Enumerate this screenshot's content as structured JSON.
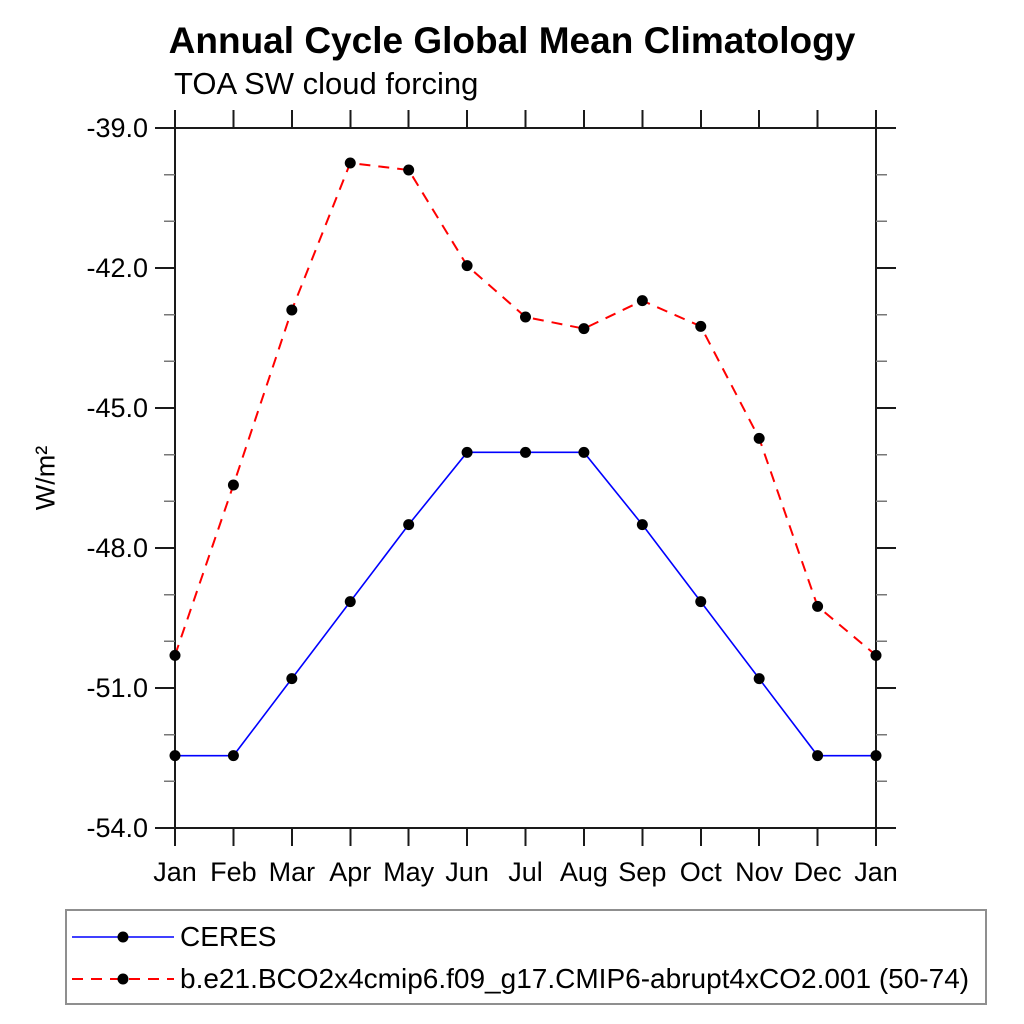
{
  "chart_data": {
    "type": "line",
    "title": "Annual Cycle Global Mean Climatology",
    "subtitle": "TOA SW cloud forcing",
    "ylabel": "W/m²",
    "xlabel": "",
    "ylim": [
      -54.0,
      -39.0
    ],
    "y_major_ticks": [
      -39.0,
      -42.0,
      -45.0,
      -48.0,
      -51.0,
      -54.0
    ],
    "y_tick_labels": [
      "-39.0",
      "-42.0",
      "-45.0",
      "-48.0",
      "-51.0",
      "-54.0"
    ],
    "y_minor_tick_step": 1.0,
    "x_categories": [
      "Jan",
      "Feb",
      "Mar",
      "Apr",
      "May",
      "Jun",
      "Jul",
      "Aug",
      "Sep",
      "Oct",
      "Nov",
      "Dec",
      "Jan"
    ],
    "grid": false,
    "legend_position": "bottom-left-box",
    "frame_color": "#1a1a1a",
    "minor_tick_color": "#777777",
    "marker_color": "#000000",
    "series": [
      {
        "name": "CERES",
        "color": "#0000ff",
        "line_style": "solid",
        "marker": "filled-circle",
        "values": [
          -52.45,
          -52.45,
          -50.8,
          -49.15,
          -47.5,
          -45.95,
          -45.95,
          -45.95,
          -47.5,
          -49.15,
          -50.8,
          -52.45,
          -52.45
        ]
      },
      {
        "name": "b.e21.BCO2x4cmip6.f09_g17.CMIP6-abrupt4xCO2.001 (50-74)",
        "color": "#ff0000",
        "line_style": "dashed",
        "marker": "filled-circle",
        "values": [
          -50.3,
          -46.65,
          -42.9,
          -39.75,
          -39.9,
          -41.95,
          -43.05,
          -43.3,
          -42.7,
          -43.25,
          -45.65,
          -49.25,
          -50.3
        ]
      }
    ]
  }
}
